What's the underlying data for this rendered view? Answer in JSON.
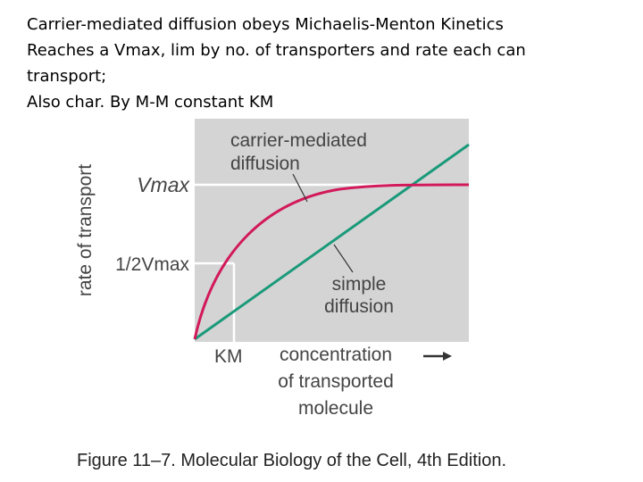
{
  "text": {
    "lines": [
      "Carrier-mediated diffusion obeys Michaelis-Menton Kinetics",
      "Reaches a Vmax, lim by no. of transporters and rate each can",
      "transport;",
      "Also char. By M-M constant KM"
    ]
  },
  "figure": {
    "y_label": "rate of transport",
    "vmax": "Vmax",
    "half_vmax": "1/2Vmax",
    "km": "KM",
    "carrier_label": [
      "carrier-mediated",
      "diffusion"
    ],
    "simple_label": [
      "simple",
      "diffusion"
    ],
    "x_label": [
      "concentration",
      "of transported",
      "molecule"
    ],
    "caption": "Figure 11–7. Molecular Biology of the Cell, 4th Edition."
  }
}
